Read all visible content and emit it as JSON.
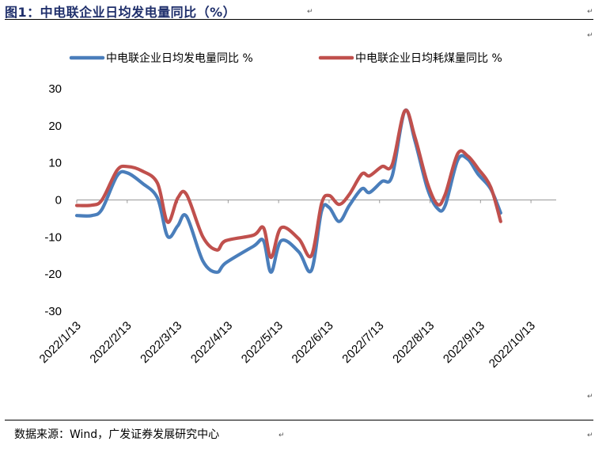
{
  "figure": {
    "title": "图1：中电联企业日均发电量同比（%）",
    "source": "数据来源：Wind，广发证券发展研究中心"
  },
  "chart_data": {
    "type": "line",
    "xlabel": "",
    "ylabel": "",
    "ylim": [
      -30,
      30
    ],
    "yticks": [
      30,
      20,
      10,
      0,
      -10,
      -20,
      -30
    ],
    "xlim": [
      0,
      19
    ],
    "xticks": [
      {
        "label": "2022/1/13",
        "x": 0
      },
      {
        "label": "2022/2/13",
        "x": 2
      },
      {
        "label": "2022/3/13",
        "x": 4
      },
      {
        "label": "2022/4/13",
        "x": 6
      },
      {
        "label": "2022/5/13",
        "x": 8
      },
      {
        "label": "2022/6/13",
        "x": 10
      },
      {
        "label": "2022/7/13",
        "x": 12
      },
      {
        "label": "2022/8/13",
        "x": 14
      },
      {
        "label": "2022/9/13",
        "x": 16
      },
      {
        "label": "2022/10/13",
        "x": 18
      }
    ],
    "grid": false,
    "legend_position": "top",
    "series": [
      {
        "name": "中电联企业日均发电量同比 %",
        "color": "#4a7ebb",
        "points": [
          [
            0,
            -4.2
          ],
          [
            0.6,
            -4.2
          ],
          [
            1.0,
            -2.5
          ],
          [
            1.6,
            6.5
          ],
          [
            2.0,
            7.3
          ],
          [
            2.6,
            4.5
          ],
          [
            3.2,
            0.5
          ],
          [
            3.6,
            -9.8
          ],
          [
            4.0,
            -7
          ],
          [
            4.35,
            -4.4
          ],
          [
            5.0,
            -16.5
          ],
          [
            5.55,
            -19.5
          ],
          [
            5.9,
            -17
          ],
          [
            7.0,
            -12.5
          ],
          [
            7.4,
            -11
          ],
          [
            7.7,
            -19.5
          ],
          [
            8.1,
            -11
          ],
          [
            8.8,
            -14
          ],
          [
            9.3,
            -19
          ],
          [
            9.7,
            -3
          ],
          [
            10.0,
            -2
          ],
          [
            10.4,
            -5.8
          ],
          [
            10.8,
            -1.5
          ],
          [
            11.3,
            3
          ],
          [
            11.6,
            2
          ],
          [
            12.1,
            5
          ],
          [
            12.5,
            6.5
          ],
          [
            13.0,
            24
          ],
          [
            13.4,
            16
          ],
          [
            13.9,
            3
          ],
          [
            14.3,
            -2.3
          ],
          [
            14.6,
            -1.5
          ],
          [
            15.1,
            10.8
          ],
          [
            15.5,
            11
          ],
          [
            15.9,
            7
          ],
          [
            16.4,
            3
          ],
          [
            16.8,
            -3.5
          ]
        ]
      },
      {
        "name": "中电联企业日均耗煤量同比 %",
        "color": "#c0504d",
        "points": [
          [
            0,
            -1.5
          ],
          [
            0.6,
            -1.4
          ],
          [
            1.0,
            0
          ],
          [
            1.6,
            8
          ],
          [
            2.0,
            9
          ],
          [
            2.6,
            7.8
          ],
          [
            3.2,
            4.5
          ],
          [
            3.6,
            -6
          ],
          [
            4.0,
            0.5
          ],
          [
            4.35,
            1.5
          ],
          [
            5.0,
            -10
          ],
          [
            5.55,
            -13.5
          ],
          [
            5.9,
            -11
          ],
          [
            7.0,
            -9.5
          ],
          [
            7.4,
            -7.5
          ],
          [
            7.7,
            -15.5
          ],
          [
            8.1,
            -7.5
          ],
          [
            8.8,
            -10.5
          ],
          [
            9.3,
            -15
          ],
          [
            9.7,
            -1
          ],
          [
            10.0,
            1.2
          ],
          [
            10.4,
            -1.2
          ],
          [
            10.8,
            1.5
          ],
          [
            11.3,
            7
          ],
          [
            11.6,
            6.5
          ],
          [
            12.1,
            9
          ],
          [
            12.5,
            9.5
          ],
          [
            13.0,
            24
          ],
          [
            13.4,
            17
          ],
          [
            13.9,
            4.5
          ],
          [
            14.3,
            -1.2
          ],
          [
            14.6,
            1.5
          ],
          [
            15.1,
            12.5
          ],
          [
            15.5,
            11.8
          ],
          [
            15.9,
            8.5
          ],
          [
            16.4,
            3.5
          ],
          [
            16.8,
            -5.8
          ]
        ]
      }
    ]
  }
}
